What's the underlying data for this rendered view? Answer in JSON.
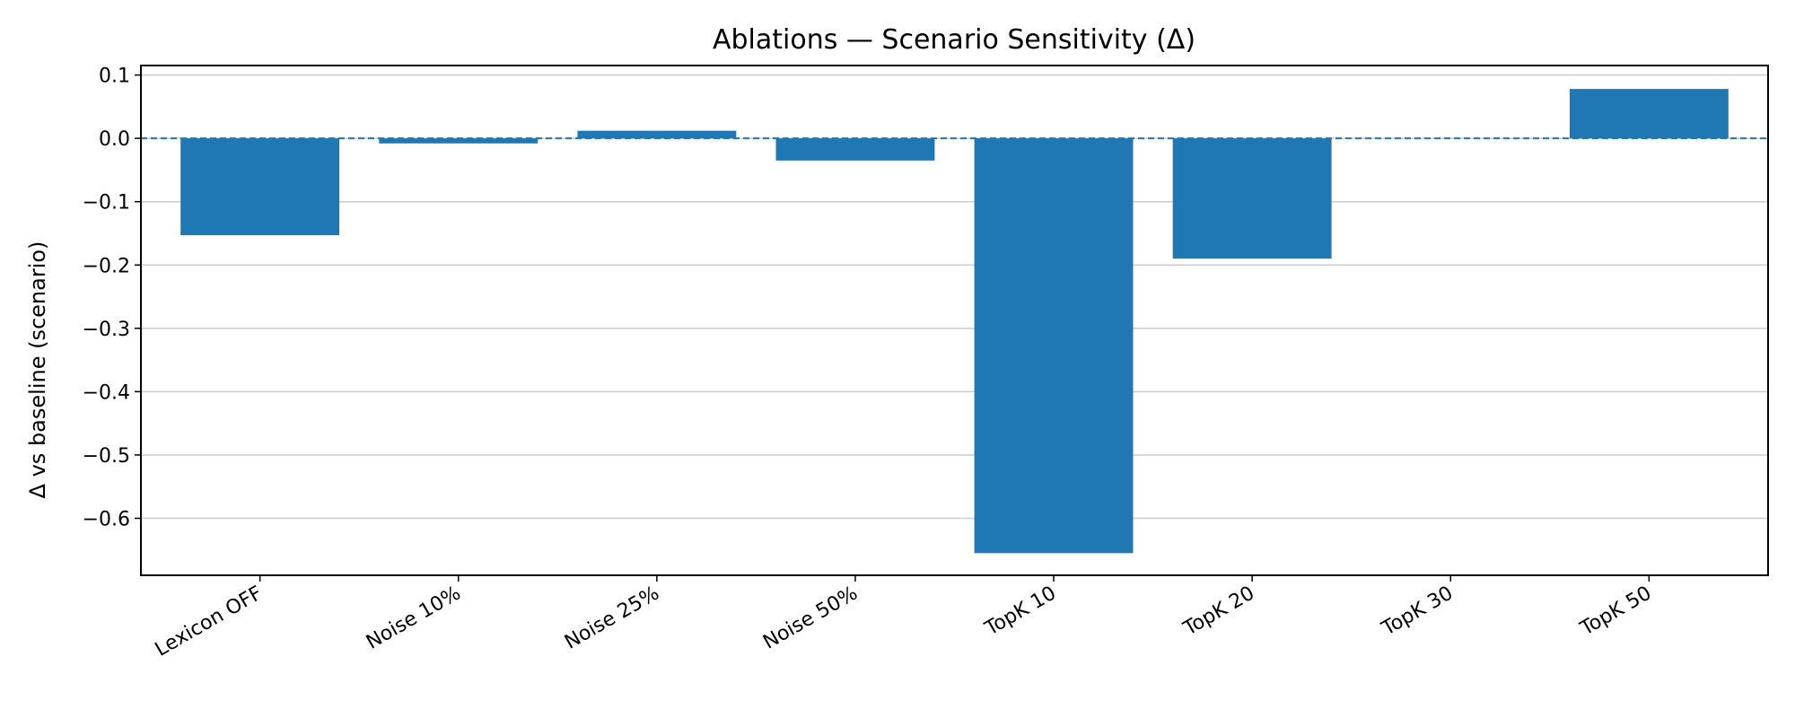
{
  "chart_data": {
    "type": "bar",
    "title": "Ablations — Scenario Sensitivity (Δ)",
    "xlabel": "",
    "ylabel": "Δ vs baseline (scenario)",
    "categories": [
      "Lexicon OFF",
      "Noise 10%",
      "Noise 25%",
      "Noise 50%",
      "TopK 10",
      "TopK 20",
      "TopK 30",
      "TopK 50"
    ],
    "values": [
      -0.153,
      -0.008,
      0.012,
      -0.035,
      -0.655,
      -0.19,
      0.0,
      0.078
    ],
    "ylim": [
      -0.69,
      0.115
    ],
    "yticks": [
      0.1,
      0.0,
      -0.1,
      -0.2,
      -0.3,
      -0.4,
      -0.5,
      -0.6
    ],
    "ytick_labels": [
      "0.1",
      "0.0",
      "−0.1",
      "−0.2",
      "−0.3",
      "−0.4",
      "−0.5",
      "−0.6"
    ],
    "grid": "horizontal",
    "baseline_value": 0.0,
    "colors": {
      "bar": "#1f77b4",
      "baseline": "#1f77b4",
      "grid": "#cccccc",
      "axis": "#000000"
    }
  }
}
